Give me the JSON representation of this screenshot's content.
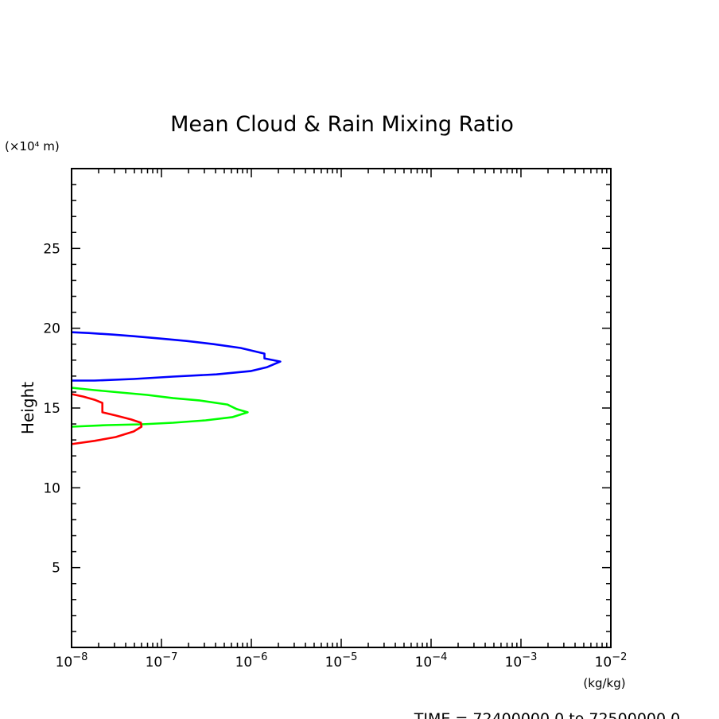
{
  "chart_data": {
    "type": "line",
    "title": "Mean Cloud & Rain Mixing Ratio",
    "ylabel": "Height",
    "yunit": "(×10⁴ m)",
    "xunit": "(kg/kg)",
    "footer": "TIME = 72400000.0 to 72500000.0",
    "xscale": "log",
    "xlim": [
      1e-08,
      0.01
    ],
    "ylim": [
      0,
      30
    ],
    "xticks": [
      1e-08,
      1e-07,
      1e-06,
      1e-05,
      0.0001,
      0.001,
      0.01
    ],
    "xtick_labels": [
      {
        "base": "10",
        "exp": "−8"
      },
      {
        "base": "10",
        "exp": "−7"
      },
      {
        "base": "10",
        "exp": "−6"
      },
      {
        "base": "10",
        "exp": "−5"
      },
      {
        "base": "10",
        "exp": "−4"
      },
      {
        "base": "10",
        "exp": "−3"
      },
      {
        "base": "10",
        "exp": "−2"
      }
    ],
    "yticks": [
      5,
      10,
      15,
      20,
      25
    ],
    "ytick_labels": [
      "5",
      "10",
      "15",
      "20",
      "25"
    ],
    "grid": false,
    "series": [
      {
        "color": "#0000ff",
        "x": [
          1e-08,
          1.55e-08,
          2.9e-08,
          4.9e-08,
          9.8e-08,
          1.9e-07,
          3.8e-07,
          7.6e-07,
          1.4e-06,
          1.4e-06,
          2.1e-06,
          1.5e-06,
          9.8e-07,
          4.1e-07,
          1.35e-07,
          4.9e-08,
          1.8e-08,
          1e-08
        ],
        "y": [
          19.75,
          19.7,
          19.6,
          19.5,
          19.35,
          19.2,
          19.0,
          18.76,
          18.41,
          18.11,
          17.91,
          17.56,
          17.31,
          17.11,
          16.97,
          16.82,
          16.72,
          16.72
        ]
      },
      {
        "color": "#00ff00",
        "x": [
          1e-08,
          1.8e-08,
          3.5e-08,
          6.9e-08,
          1.35e-07,
          2.7e-07,
          5.4e-07,
          6.9e-07,
          9.1e-07,
          6.2e-07,
          3.1e-07,
          1.35e-07,
          6e-08,
          2.5e-08,
          1e-08
        ],
        "y": [
          16.27,
          16.12,
          15.97,
          15.82,
          15.62,
          15.47,
          15.22,
          14.93,
          14.73,
          14.43,
          14.23,
          14.08,
          13.98,
          13.93,
          13.83
        ]
      },
      {
        "color": "#ff0000",
        "x": [
          1e-08,
          1.35e-08,
          1.8e-08,
          2.2e-08,
          2.2e-08,
          3.1e-08,
          4.6e-08,
          5.9e-08,
          6e-08,
          4.9e-08,
          3.1e-08,
          1.8e-08,
          1e-08
        ],
        "y": [
          15.87,
          15.72,
          15.52,
          15.32,
          14.73,
          14.53,
          14.28,
          14.08,
          13.83,
          13.53,
          13.18,
          12.94,
          12.74
        ]
      }
    ]
  }
}
